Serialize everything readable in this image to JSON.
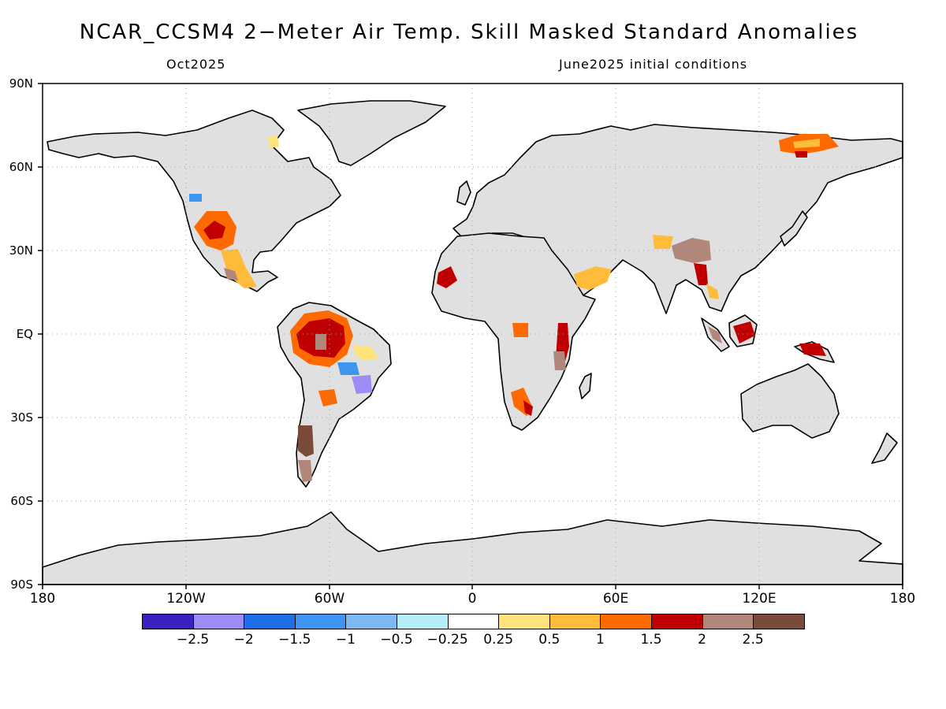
{
  "title": "NCAR_CCSM4 2−Meter Air Temp. Skill Masked Standard Anomalies",
  "subtitle_left": "Oct2025",
  "subtitle_right": "June2025 initial conditions",
  "axes": {
    "lat_labels": [
      "90N",
      "60N",
      "30N",
      "EQ",
      "30S",
      "60S",
      "90S"
    ],
    "lon_labels": [
      "180",
      "120W",
      "60W",
      "0",
      "60E",
      "120E",
      "180"
    ]
  },
  "colors": {
    "land": "#e0e0e0",
    "ocean": "#ffffff",
    "coast": "#000000",
    "grid": "#a0a0a0"
  },
  "colorbar": {
    "colors": [
      "#3b1fbf",
      "#9d8cf5",
      "#1f6ee6",
      "#3c95ee",
      "#7db8f5",
      "#b5ecf8",
      "#ffffff",
      "#ffe27a",
      "#ffbc3a",
      "#ff6a00",
      "#c00000",
      "#b0877a",
      "#7a4a3a"
    ],
    "labels": [
      "−2.5",
      "−2",
      "−1.5",
      "−1",
      "−0.5",
      "−0.25",
      "0.25",
      "0.5",
      "1",
      "1.5",
      "2",
      "2.5"
    ]
  },
  "anomaly_regions": [
    {
      "name": "Western US / Mexico",
      "category": "1.5"
    },
    {
      "name": "Amazon Basin",
      "category": "2"
    },
    {
      "name": "Eastern Brazil",
      "category": "−1"
    },
    {
      "name": "Patagonia",
      "category": "2.5"
    },
    {
      "name": "West Africa coast",
      "category": "2"
    },
    {
      "name": "East Africa",
      "category": "2"
    },
    {
      "name": "Southern Africa",
      "category": "2"
    },
    {
      "name": "Arabian Peninsula",
      "category": "1"
    },
    {
      "name": "Tibet / Southeast Asia",
      "category": "2.5"
    },
    {
      "name": "Maritime Continent",
      "category": "2"
    },
    {
      "name": "Northeast Siberia",
      "category": "1.5"
    }
  ]
}
